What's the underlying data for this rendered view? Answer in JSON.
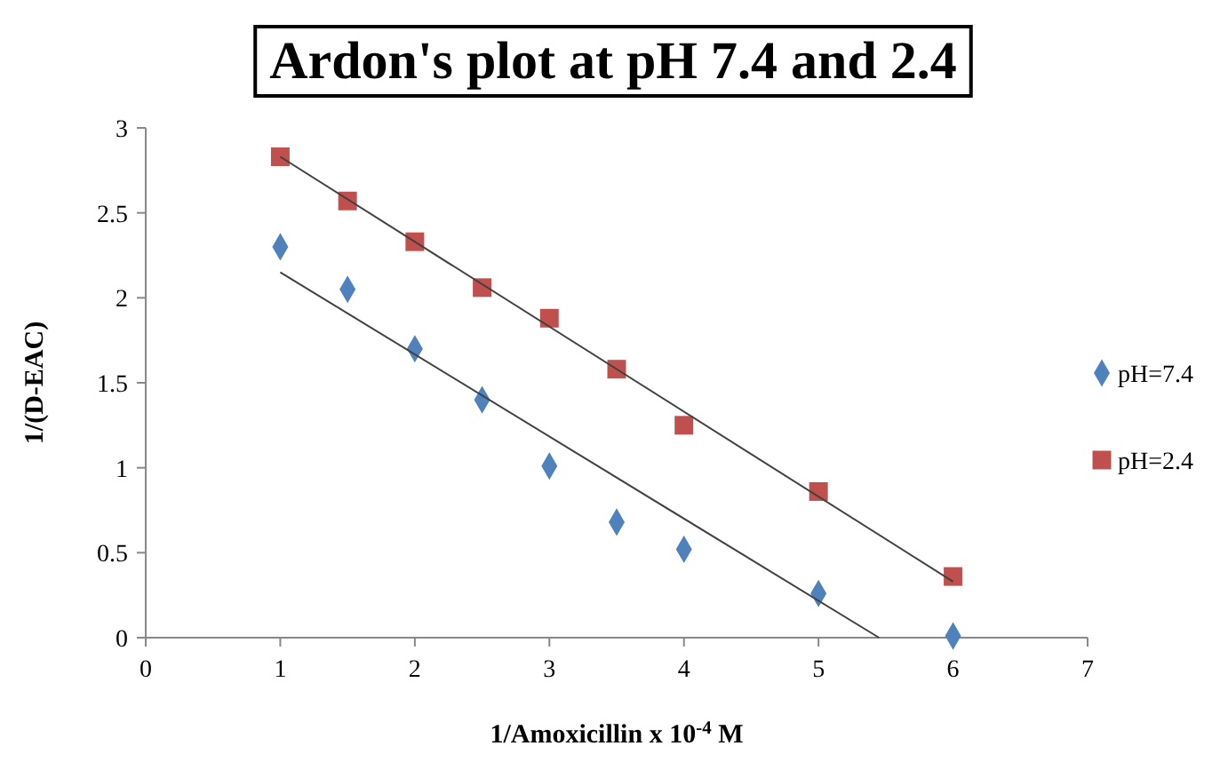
{
  "chart_data": {
    "type": "scatter",
    "title": "Ardon's plot at pH 7.4 and 2.4",
    "xlabel": "1/Amoxicillin x 10$^{-4}$ M",
    "ylabel": "1/(D-EAC)",
    "x": [
      1,
      1.5,
      2,
      2.5,
      3,
      3.5,
      4,
      5,
      6
    ],
    "series": [
      {
        "name": "pH=7.4",
        "color": "#4f81bd",
        "marker": "diamond",
        "values": [
          2.3,
          2.05,
          1.7,
          1.4,
          1.01,
          0.68,
          0.52,
          0.26,
          0.01
        ]
      },
      {
        "name": "pH=2.4",
        "color": "#c0504d",
        "marker": "square",
        "values": [
          2.83,
          2.57,
          2.33,
          2.06,
          1.88,
          1.58,
          1.25,
          0.86,
          0.36
        ]
      },
      {
        "type": "line",
        "color": "#404040",
        "marker": "none",
        "x": [
          1,
          5.45
        ],
        "values": [
          2.15,
          0
        ]
      },
      {
        "type": "line",
        "color": "#404040",
        "marker": "none",
        "x": [
          1,
          6
        ],
        "values": [
          2.83,
          0.33
        ]
      }
    ],
    "xlim": [
      0,
      7
    ],
    "xticks": [
      0,
      1,
      2,
      3,
      4,
      5,
      6,
      7
    ],
    "ylim": [
      0,
      3
    ],
    "yticks": [
      0,
      0.5,
      1,
      1.5,
      2,
      2.5,
      3
    ],
    "grid": false,
    "legend": "right"
  }
}
